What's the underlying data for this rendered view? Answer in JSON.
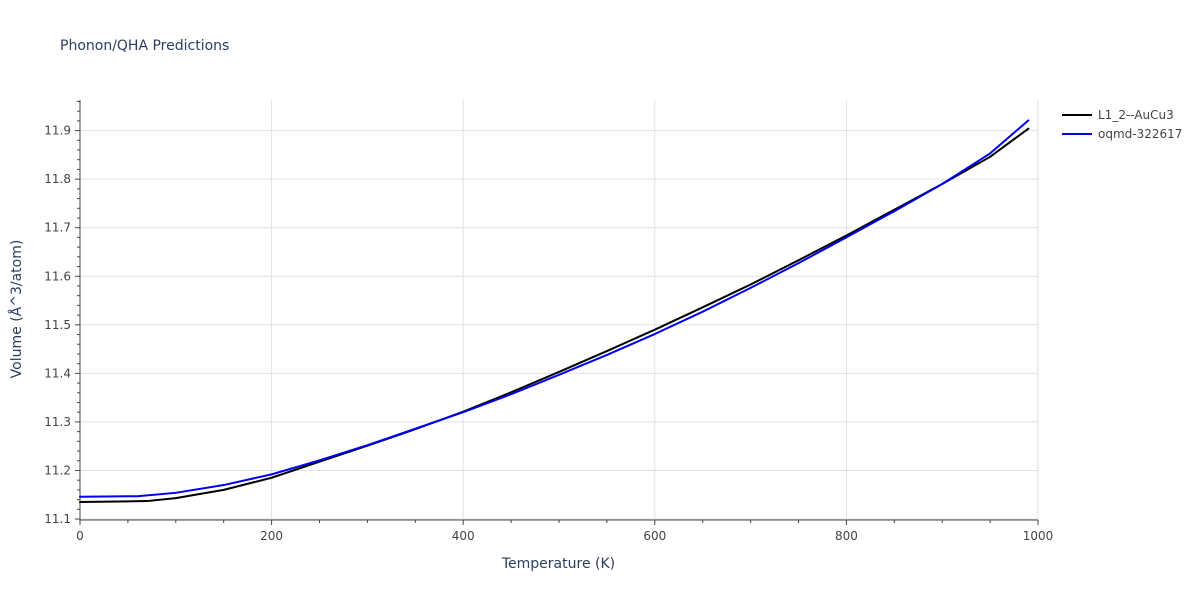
{
  "chart_data": {
    "type": "line",
    "title": "Phonon/QHA Predictions",
    "xlabel": "Temperature (K)",
    "ylabel": "Volume (Å^3/atom)",
    "xlim": [
      0,
      1000
    ],
    "ylim": [
      11.098,
      11.963
    ],
    "x_ticks": [
      0,
      200,
      400,
      600,
      800,
      1000
    ],
    "y_ticks": [
      11.1,
      11.2,
      11.3,
      11.4,
      11.5,
      11.6,
      11.7,
      11.8,
      11.9
    ],
    "grid": true,
    "legend_position": "top-right",
    "series": [
      {
        "name": "L1_2--AuCu3",
        "color": "#000000",
        "x": [
          0,
          70,
          100,
          150,
          200,
          250,
          300,
          350,
          400,
          450,
          500,
          550,
          600,
          650,
          700,
          750,
          800,
          850,
          900,
          950,
          990
        ],
        "y": [
          11.135,
          11.137,
          11.143,
          11.16,
          11.185,
          11.218,
          11.251,
          11.285,
          11.321,
          11.361,
          11.403,
          11.446,
          11.49,
          11.536,
          11.583,
          11.633,
          11.684,
          11.737,
          11.79,
          11.846,
          11.904
        ]
      },
      {
        "name": "oqmd-322617",
        "color": "#0000ee",
        "x": [
          0,
          60,
          100,
          150,
          200,
          250,
          300,
          350,
          400,
          450,
          500,
          550,
          600,
          650,
          700,
          750,
          800,
          850,
          900,
          950,
          990
        ],
        "y": [
          11.146,
          11.147,
          11.154,
          11.17,
          11.192,
          11.221,
          11.252,
          11.286,
          11.32,
          11.357,
          11.397,
          11.438,
          11.481,
          11.527,
          11.576,
          11.627,
          11.68,
          11.734,
          11.79,
          11.853,
          11.921
        ]
      }
    ]
  }
}
